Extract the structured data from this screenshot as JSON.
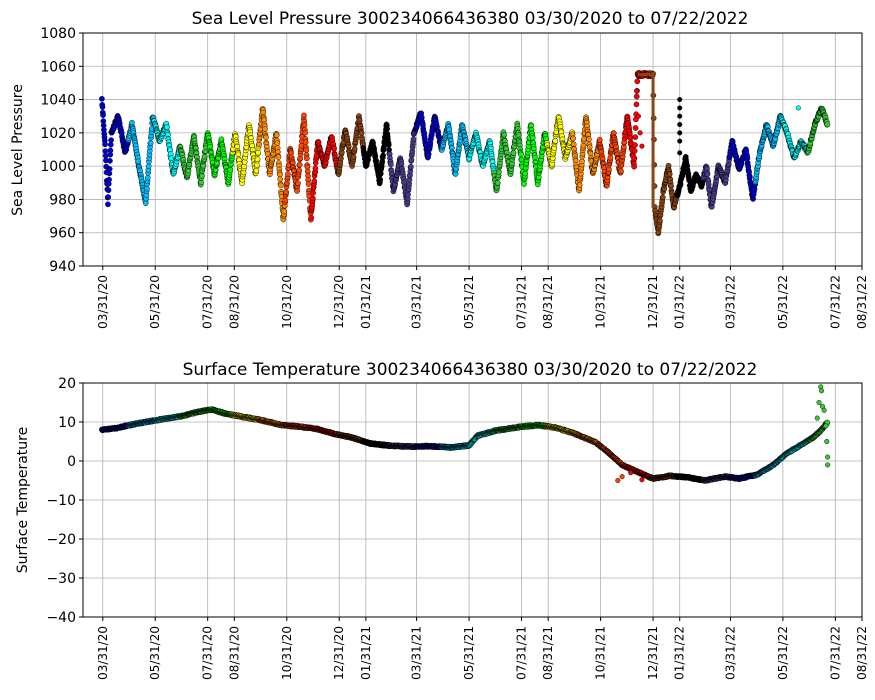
{
  "chart_data": [
    {
      "type": "scatter",
      "title": "Sea Level Pressure 300234066436380  03/30/2020 to 07/22/2022",
      "xlabel": "",
      "ylabel": "Sea Level Pressure",
      "ylim": [
        940,
        1080
      ],
      "yticks": [
        940,
        960,
        980,
        1000,
        1020,
        1040,
        1060,
        1080
      ],
      "xlim": [
        "2020-03-08",
        "2022-08-31"
      ],
      "xticks": [
        {
          "date": "2020-03-31",
          "label": "03/31/20"
        },
        {
          "date": "2020-05-31",
          "label": "05/31/20"
        },
        {
          "date": "2020-07-31",
          "label": "07/31/20"
        },
        {
          "date": "2020-08-31",
          "label": "08/31/20"
        },
        {
          "date": "2020-10-31",
          "label": "10/31/20"
        },
        {
          "date": "2020-12-31",
          "label": "12/31/20"
        },
        {
          "date": "2021-01-31",
          "label": "01/31/21"
        },
        {
          "date": "2021-03-31",
          "label": "03/31/21"
        },
        {
          "date": "2021-05-31",
          "label": "05/31/21"
        },
        {
          "date": "2021-07-31",
          "label": "07/31/21"
        },
        {
          "date": "2021-08-31",
          "label": "08/31/21"
        },
        {
          "date": "2021-10-31",
          "label": "10/31/21"
        },
        {
          "date": "2021-12-31",
          "label": "12/31/21"
        },
        {
          "date": "2022-01-31",
          "label": "01/31/22"
        },
        {
          "date": "2022-03-31",
          "label": "03/31/22"
        },
        {
          "date": "2022-05-31",
          "label": "05/31/22"
        },
        {
          "date": "2022-07-31",
          "label": "07/31/22"
        },
        {
          "date": "2022-08-31",
          "label": "08/31/22"
        }
      ],
      "grid": true,
      "points": [
        [
          "2020-03-30",
          1040
        ],
        [
          "2020-04-03",
          1010
        ],
        [
          "2020-04-06",
          978
        ],
        [
          "2020-04-10",
          1020
        ],
        [
          "2020-04-18",
          1030
        ],
        [
          "2020-04-26",
          1008
        ],
        [
          "2020-05-04",
          1025
        ],
        [
          "2020-05-12",
          1000
        ],
        [
          "2020-05-20",
          978
        ],
        [
          "2020-05-28",
          1030
        ],
        [
          "2020-06-05",
          1015
        ],
        [
          "2020-06-13",
          1025
        ],
        [
          "2020-06-21",
          995
        ],
        [
          "2020-06-29",
          1012
        ],
        [
          "2020-07-07",
          993
        ],
        [
          "2020-07-15",
          1018
        ],
        [
          "2020-07-23",
          990
        ],
        [
          "2020-07-31",
          1020
        ],
        [
          "2020-08-08",
          995
        ],
        [
          "2020-08-16",
          1015
        ],
        [
          "2020-08-24",
          990
        ],
        [
          "2020-09-01",
          1020
        ],
        [
          "2020-09-09",
          990
        ],
        [
          "2020-09-17",
          1025
        ],
        [
          "2020-09-25",
          995
        ],
        [
          "2020-10-03",
          1035
        ],
        [
          "2020-10-11",
          995
        ],
        [
          "2020-10-19",
          1020
        ],
        [
          "2020-10-27",
          968
        ],
        [
          "2020-11-04",
          1010
        ],
        [
          "2020-11-12",
          985
        ],
        [
          "2020-11-20",
          1030
        ],
        [
          "2020-11-28",
          968
        ],
        [
          "2020-12-06",
          1015
        ],
        [
          "2020-12-14",
          1000
        ],
        [
          "2020-12-22",
          1018
        ],
        [
          "2020-12-30",
          995
        ],
        [
          "2021-01-07",
          1022
        ],
        [
          "2021-01-15",
          1000
        ],
        [
          "2021-01-23",
          1030
        ],
        [
          "2021-01-31",
          1000
        ],
        [
          "2021-02-08",
          1015
        ],
        [
          "2021-02-16",
          990
        ],
        [
          "2021-02-24",
          1025
        ],
        [
          "2021-03-04",
          985
        ],
        [
          "2021-03-12",
          1005
        ],
        [
          "2021-03-20",
          978
        ],
        [
          "2021-03-28",
          1020
        ],
        [
          "2021-04-05",
          1032
        ],
        [
          "2021-04-13",
          1005
        ],
        [
          "2021-04-21",
          1030
        ],
        [
          "2021-04-29",
          1010
        ],
        [
          "2021-05-07",
          1025
        ],
        [
          "2021-05-15",
          995
        ],
        [
          "2021-05-23",
          1025
        ],
        [
          "2021-05-31",
          1005
        ],
        [
          "2021-06-08",
          1020
        ],
        [
          "2021-06-16",
          1000
        ],
        [
          "2021-06-24",
          1015
        ],
        [
          "2021-07-02",
          985
        ],
        [
          "2021-07-10",
          1020
        ],
        [
          "2021-07-18",
          995
        ],
        [
          "2021-07-26",
          1025
        ],
        [
          "2021-08-03",
          990
        ],
        [
          "2021-08-11",
          1025
        ],
        [
          "2021-08-19",
          990
        ],
        [
          "2021-08-27",
          1020
        ],
        [
          "2021-09-04",
          1000
        ],
        [
          "2021-09-12",
          1030
        ],
        [
          "2021-09-20",
          1005
        ],
        [
          "2021-09-28",
          1020
        ],
        [
          "2021-10-06",
          985
        ],
        [
          "2021-10-14",
          1030
        ],
        [
          "2021-10-22",
          995
        ],
        [
          "2021-10-30",
          1015
        ],
        [
          "2021-11-07",
          988
        ],
        [
          "2021-11-15",
          1020
        ],
        [
          "2021-11-23",
          995
        ],
        [
          "2021-12-01",
          1030
        ],
        [
          "2021-12-09",
          1000
        ],
        [
          "2021-12-13",
          1055
        ],
        [
          "2021-12-31",
          1055
        ],
        [
          "2022-01-02",
          975
        ],
        [
          "2022-01-06",
          960
        ],
        [
          "2022-01-12",
          985
        ],
        [
          "2022-01-18",
          1000
        ],
        [
          "2022-01-24",
          975
        ],
        [
          "2022-02-01",
          990
        ],
        [
          "2022-02-07",
          1005
        ],
        [
          "2022-02-13",
          985
        ],
        [
          "2022-02-19",
          995
        ],
        [
          "2022-02-25",
          988
        ],
        [
          "2022-03-03",
          1000
        ],
        [
          "2022-03-09",
          975
        ],
        [
          "2022-03-17",
          1000
        ],
        [
          "2022-03-25",
          990
        ],
        [
          "2022-04-02",
          1015
        ],
        [
          "2022-04-10",
          998
        ],
        [
          "2022-04-18",
          1010
        ],
        [
          "2022-04-26",
          980
        ],
        [
          "2022-05-04",
          1008
        ],
        [
          "2022-05-12",
          1025
        ],
        [
          "2022-05-20",
          1012
        ],
        [
          "2022-05-28",
          1030
        ],
        [
          "2022-06-05",
          1020
        ],
        [
          "2022-06-13",
          1005
        ],
        [
          "2022-06-21",
          1015
        ],
        [
          "2022-06-29",
          1008
        ],
        [
          "2022-07-07",
          1025
        ],
        [
          "2022-07-15",
          1035
        ],
        [
          "2022-07-22",
          1025
        ]
      ],
      "outliers": [
        [
          "2021-12-12",
          1045
        ],
        [
          "2021-12-14",
          1030
        ],
        [
          "2021-12-16",
          1020
        ],
        [
          "2021-12-18",
          1012
        ],
        [
          "2022-01-31",
          1040
        ],
        [
          "2022-01-31",
          1035
        ],
        [
          "2022-01-31",
          1030
        ],
        [
          "2022-01-31",
          1025
        ],
        [
          "2022-01-31",
          1020
        ],
        [
          "2022-01-31",
          1015
        ],
        [
          "2022-01-31",
          1008
        ],
        [
          "2022-06-18",
          1035
        ]
      ]
    },
    {
      "type": "scatter",
      "title": "Surface Temperature 300234066436380  03/30/2020 to 07/22/2022",
      "xlabel": "",
      "ylabel": "Surface Temperature",
      "ylim": [
        -40,
        20
      ],
      "yticks": [
        -40,
        -30,
        -20,
        -10,
        0,
        10,
        20
      ],
      "xlim": [
        "2020-03-08",
        "2022-08-31"
      ],
      "grid": true,
      "points": [
        [
          "2020-03-30",
          8.0
        ],
        [
          "2020-04-15",
          8.4
        ],
        [
          "2020-05-01",
          9.2
        ],
        [
          "2020-05-20",
          10.0
        ],
        [
          "2020-06-10",
          10.8
        ],
        [
          "2020-07-01",
          11.5
        ],
        [
          "2020-07-20",
          12.6
        ],
        [
          "2020-08-05",
          13.2
        ],
        [
          "2020-08-20",
          12.2
        ],
        [
          "2020-09-10",
          11.3
        ],
        [
          "2020-10-01",
          10.5
        ],
        [
          "2020-10-25",
          9.2
        ],
        [
          "2020-11-15",
          8.8
        ],
        [
          "2020-12-05",
          8.2
        ],
        [
          "2020-12-25",
          7.0
        ],
        [
          "2021-01-15",
          6.0
        ],
        [
          "2021-02-05",
          4.5
        ],
        [
          "2021-03-01",
          3.9
        ],
        [
          "2021-03-25",
          3.7
        ],
        [
          "2021-04-15",
          3.8
        ],
        [
          "2021-05-10",
          3.5
        ],
        [
          "2021-05-31",
          4.0
        ],
        [
          "2021-06-10",
          6.5
        ],
        [
          "2021-07-01",
          7.8
        ],
        [
          "2021-07-31",
          8.8
        ],
        [
          "2021-08-20",
          9.2
        ],
        [
          "2021-09-10",
          8.5
        ],
        [
          "2021-10-01",
          7.0
        ],
        [
          "2021-10-25",
          4.8
        ],
        [
          "2021-11-10",
          2.0
        ],
        [
          "2021-11-25",
          -1.0
        ],
        [
          "2021-12-10",
          -2.5
        ],
        [
          "2021-12-31",
          -4.5
        ],
        [
          "2022-01-20",
          -3.8
        ],
        [
          "2022-02-10",
          -4.2
        ],
        [
          "2022-03-01",
          -5.0
        ],
        [
          "2022-03-25",
          -4.0
        ],
        [
          "2022-04-10",
          -4.5
        ],
        [
          "2022-05-01",
          -3.5
        ],
        [
          "2022-05-20",
          -1.0
        ],
        [
          "2022-06-05",
          2.0
        ],
        [
          "2022-06-20",
          4.0
        ],
        [
          "2022-07-05",
          6.0
        ],
        [
          "2022-07-15",
          8.0
        ],
        [
          "2022-07-22",
          10.0
        ]
      ],
      "outliers": [
        [
          "2021-11-20",
          -5.0
        ],
        [
          "2021-11-25",
          -4.0
        ],
        [
          "2021-12-05",
          -3.0
        ],
        [
          "2021-12-18",
          -4.8
        ],
        [
          "2022-07-14",
          19.0
        ],
        [
          "2022-07-15",
          18.0
        ],
        [
          "2022-07-12",
          15.0
        ],
        [
          "2022-07-16",
          14.0
        ],
        [
          "2022-07-18",
          13.0
        ],
        [
          "2022-07-10",
          11.0
        ],
        [
          "2022-07-20",
          9.0
        ],
        [
          "2022-07-21",
          5.0
        ],
        [
          "2022-07-22",
          1.0
        ],
        [
          "2022-07-22",
          -1.0
        ]
      ]
    }
  ],
  "color_cycle": [
    "#0000cd",
    "#00bfff",
    "#00ffff",
    "#32cd32",
    "#00ff00",
    "#ffff00",
    "#ff8c00",
    "#ff4500",
    "#ff0000",
    "#8b4513",
    "#000000",
    "#483d8b"
  ]
}
